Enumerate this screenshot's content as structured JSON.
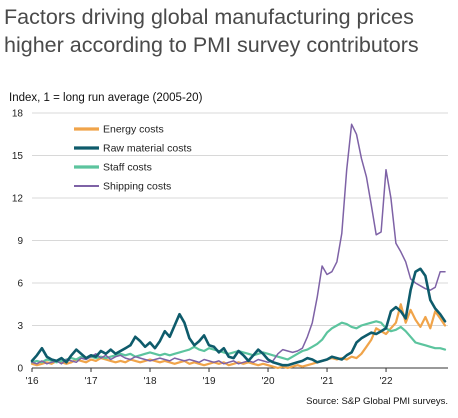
{
  "chart_data": {
    "type": "line",
    "title": [
      "Factors driving global manufacturing prices",
      "higher according to PMI survey contributors"
    ],
    "ylabel": "Index, 1 = long run average (2005-20)",
    "source": "Source: S&P Global PMI surveys.",
    "ylim": [
      0,
      18
    ],
    "yticks": [
      0,
      3,
      6,
      9,
      12,
      15,
      18
    ],
    "xlim": [
      2016.0,
      2023.05
    ],
    "xticks": [
      {
        "value": 2016,
        "label": "'16"
      },
      {
        "value": 2017,
        "label": "'17"
      },
      {
        "value": 2018,
        "label": "'18"
      },
      {
        "value": 2019,
        "label": "'19"
      },
      {
        "value": 2020,
        "label": "'20"
      },
      {
        "value": 2021,
        "label": "'21"
      },
      {
        "value": 2022,
        "label": "'22"
      }
    ],
    "grid": "horizontal",
    "legend_position": "top-left",
    "x": [
      2016.0,
      2016.083,
      2016.167,
      2016.25,
      2016.333,
      2016.417,
      2016.5,
      2016.583,
      2016.667,
      2016.75,
      2016.833,
      2016.917,
      2017.0,
      2017.083,
      2017.167,
      2017.25,
      2017.333,
      2017.417,
      2017.5,
      2017.583,
      2017.667,
      2017.75,
      2017.833,
      2017.917,
      2018.0,
      2018.083,
      2018.167,
      2018.25,
      2018.333,
      2018.417,
      2018.5,
      2018.583,
      2018.667,
      2018.75,
      2018.833,
      2018.917,
      2019.0,
      2019.083,
      2019.167,
      2019.25,
      2019.333,
      2019.417,
      2019.5,
      2019.583,
      2019.667,
      2019.75,
      2019.833,
      2019.917,
      2020.0,
      2020.083,
      2020.167,
      2020.25,
      2020.333,
      2020.417,
      2020.5,
      2020.583,
      2020.667,
      2020.75,
      2020.833,
      2020.917,
      2021.0,
      2021.083,
      2021.167,
      2021.25,
      2021.333,
      2021.417,
      2021.5,
      2021.583,
      2021.667,
      2021.75,
      2021.833,
      2021.917,
      2022.0,
      2022.083,
      2022.167,
      2022.25,
      2022.333,
      2022.417,
      2022.5,
      2022.583,
      2022.667,
      2022.75,
      2022.833,
      2022.917,
      2023.0
    ],
    "series": [
      {
        "name": "Energy costs",
        "color": "#f0a44a",
        "values": [
          0.3,
          0.2,
          0.3,
          0.4,
          0.3,
          0.5,
          0.4,
          0.3,
          0.4,
          0.6,
          0.5,
          0.4,
          0.6,
          0.5,
          0.7,
          0.6,
          0.5,
          0.4,
          0.5,
          0.4,
          0.6,
          0.5,
          0.4,
          0.5,
          0.6,
          0.5,
          0.4,
          0.5,
          0.4,
          0.3,
          0.4,
          0.5,
          0.3,
          0.4,
          0.3,
          0.2,
          0.3,
          0.4,
          0.3,
          0.4,
          0.2,
          0.3,
          0.4,
          0.3,
          0.4,
          0.3,
          0.2,
          0.3,
          0.2,
          0.1,
          0.0,
          0.1,
          0.0,
          0.1,
          0.2,
          0.1,
          0.2,
          0.3,
          0.4,
          0.5,
          0.6,
          0.7,
          0.6,
          0.7,
          0.6,
          0.8,
          0.7,
          1.0,
          1.5,
          2.0,
          2.8,
          2.6,
          2.4,
          2.8,
          3.2,
          4.5,
          3.2,
          4.1,
          3.4,
          2.9,
          3.6,
          2.8,
          4.0,
          3.5,
          3.0
        ]
      },
      {
        "name": "Raw material costs",
        "color": "#0e5b6b",
        "values": [
          0.5,
          0.9,
          1.4,
          0.8,
          0.6,
          0.5,
          0.7,
          0.4,
          0.9,
          1.3,
          1.0,
          0.7,
          0.9,
          0.8,
          1.2,
          1.0,
          1.3,
          1.0,
          1.2,
          1.4,
          1.6,
          2.2,
          1.9,
          1.5,
          1.8,
          1.4,
          1.9,
          2.6,
          2.2,
          3.0,
          3.8,
          3.2,
          2.1,
          1.6,
          1.9,
          2.3,
          1.6,
          1.5,
          1.1,
          1.4,
          0.8,
          0.7,
          1.2,
          0.9,
          0.5,
          0.9,
          1.3,
          1.0,
          0.6,
          0.4,
          0.3,
          0.2,
          0.2,
          0.3,
          0.4,
          0.5,
          0.7,
          0.6,
          0.4,
          0.5,
          0.6,
          0.8,
          0.7,
          0.6,
          0.9,
          1.1,
          1.8,
          2.1,
          2.3,
          2.5,
          2.4,
          2.6,
          2.8,
          4.0,
          4.3,
          4.0,
          3.5,
          5.5,
          6.8,
          7.0,
          6.5,
          4.8,
          4.2,
          3.8,
          3.3
        ]
      },
      {
        "name": "Staff costs",
        "color": "#5cc49e",
        "values": [
          0.4,
          0.5,
          0.4,
          0.6,
          0.5,
          0.4,
          0.5,
          0.6,
          0.7,
          0.6,
          0.8,
          0.7,
          0.8,
          0.7,
          0.8,
          0.7,
          0.8,
          0.9,
          1.0,
          0.9,
          1.0,
          0.8,
          0.9,
          1.0,
          1.1,
          1.0,
          0.9,
          1.0,
          0.9,
          1.0,
          1.1,
          1.2,
          1.3,
          1.5,
          1.3,
          1.2,
          1.4,
          1.3,
          1.2,
          1.1,
          1.0,
          1.1,
          1.2,
          1.1,
          1.0,
          0.9,
          1.0,
          1.1,
          1.0,
          0.9,
          0.8,
          0.7,
          0.6,
          0.8,
          1.0,
          1.2,
          1.3,
          1.5,
          1.7,
          2.0,
          2.5,
          2.8,
          3.0,
          3.2,
          3.1,
          2.9,
          2.8,
          3.0,
          3.1,
          3.2,
          3.3,
          3.2,
          2.8,
          2.6,
          2.7,
          2.9,
          2.6,
          2.2,
          1.8,
          1.7,
          1.6,
          1.5,
          1.4,
          1.4,
          1.3
        ]
      },
      {
        "name": "Shipping costs",
        "color": "#7e62a6",
        "values": [
          0.4,
          0.3,
          0.5,
          0.3,
          0.4,
          0.5,
          0.3,
          0.6,
          0.5,
          0.4,
          0.7,
          0.6,
          0.8,
          1.0,
          0.7,
          0.9,
          0.6,
          0.8,
          0.9,
          0.7,
          0.6,
          0.8,
          0.7,
          0.6,
          0.5,
          0.6,
          0.7,
          0.6,
          0.5,
          0.7,
          0.6,
          0.5,
          0.6,
          0.5,
          0.4,
          0.6,
          0.5,
          0.4,
          0.5,
          0.3,
          0.4,
          0.5,
          0.3,
          0.4,
          0.5,
          0.4,
          0.6,
          0.5,
          0.4,
          0.5,
          1.0,
          1.3,
          1.2,
          1.1,
          1.2,
          1.4,
          2.2,
          3.2,
          5.0,
          7.2,
          6.6,
          6.8,
          7.5,
          9.5,
          14.0,
          17.2,
          16.5,
          14.8,
          13.5,
          11.5,
          9.4,
          9.6,
          14.0,
          12.0,
          8.8,
          8.2,
          7.5,
          6.3,
          6.0,
          5.8,
          5.6,
          5.5,
          5.7,
          6.8,
          6.8
        ]
      }
    ]
  }
}
